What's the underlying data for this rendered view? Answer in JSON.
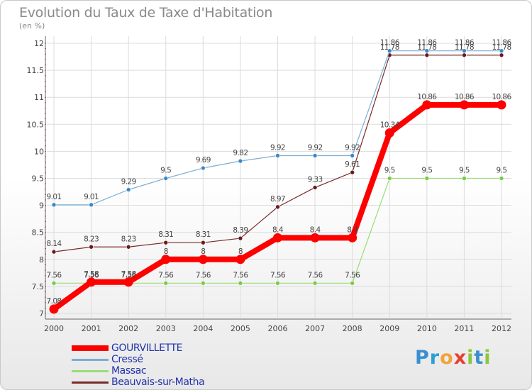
{
  "title": "Evolution du Taux de Taxe d'Habitation",
  "unit_label": "(en %)",
  "logo": {
    "text": "Proxiti",
    "letters": [
      {
        "ch": "P",
        "color": "#3a8fd0"
      },
      {
        "ch": "r",
        "color": "#2aa0d6"
      },
      {
        "ch": "o",
        "color": "#f2a33a"
      },
      {
        "ch": "x",
        "color": "#e84030"
      },
      {
        "ch": "i",
        "color": "#8cc63f"
      },
      {
        "ch": "t",
        "color": "#3a8fd0"
      },
      {
        "ch": "i",
        "color": "#8cc63f"
      }
    ]
  },
  "chart_data": {
    "type": "line",
    "x": [
      2000,
      2001,
      2002,
      2003,
      2004,
      2005,
      2006,
      2007,
      2008,
      2009,
      2010,
      2011,
      2012
    ],
    "y_ticks": [
      7,
      7.5,
      8,
      8.5,
      9,
      9.5,
      10,
      10.5,
      11,
      11.5,
      12
    ],
    "y_tick_labels": [
      "7",
      "7.5",
      "8",
      "8.5",
      "9",
      "9.5",
      "10",
      "10.5",
      "11",
      "11.5",
      "12"
    ],
    "ylim": [
      7,
      12
    ],
    "grid": true,
    "legend_position": "bottom-left",
    "series": [
      {
        "name": "Beauvais-sur-Matha",
        "color": "#7a2a2a",
        "marker": "#6b1a1a",
        "width": 1.2,
        "values": [
          8.14,
          8.23,
          8.23,
          8.31,
          8.31,
          8.39,
          8.97,
          9.33,
          9.61,
          11.78,
          11.78,
          11.78,
          11.78
        ],
        "labels": [
          "8.14",
          "8.23",
          "8.23",
          "8.31",
          "8.31",
          "8.39",
          "8.97",
          "9.33",
          "9.61",
          "11.78",
          "11.78",
          "11.78",
          "11.78"
        ]
      },
      {
        "name": "Massac",
        "color": "#99dd77",
        "marker": "#77cc44",
        "width": 1.2,
        "values": [
          7.56,
          7.56,
          7.56,
          7.56,
          7.56,
          7.56,
          7.56,
          7.56,
          7.56,
          9.5,
          9.5,
          9.5,
          9.5
        ],
        "labels": [
          "7.56",
          "7.56",
          "7.56",
          "7.56",
          "7.56",
          "7.56",
          "7.56",
          "7.56",
          "7.56",
          "9.5",
          "9.5",
          "9.5",
          "9.5"
        ]
      },
      {
        "name": "Cressé",
        "color": "#7aaed6",
        "marker": "#3a88c8",
        "width": 1.2,
        "values": [
          9.01,
          9.01,
          9.29,
          9.5,
          9.69,
          9.82,
          9.92,
          9.92,
          9.92,
          11.86,
          11.86,
          11.86,
          11.86
        ],
        "labels": [
          "9.01",
          "9.01",
          "9.29",
          "9.5",
          "9.69",
          "9.82",
          "9.92",
          "9.92",
          "9.92",
          "11.86",
          "11.86",
          "11.86",
          "11.86"
        ]
      },
      {
        "name": "GOURVILLETTE",
        "color": "#ff0000",
        "marker": "#ff0000",
        "width": 8,
        "values": [
          7.08,
          7.58,
          7.58,
          8,
          8,
          8,
          8.4,
          8.4,
          8.4,
          10.34,
          10.86,
          10.86,
          10.86
        ],
        "labels": [
          "7.08",
          "7.58",
          "7.58",
          "8",
          "8",
          "8",
          "8.4",
          "8.4",
          "8.4",
          "10.34",
          "10.86",
          "10.86",
          "10.86"
        ]
      }
    ],
    "legend": [
      {
        "name": "GOURVILLETTE",
        "color": "#ff0000",
        "weight": "thick"
      },
      {
        "name": "Cressé",
        "color": "#7aaed6",
        "weight": "thin"
      },
      {
        "name": "Massac",
        "color": "#99dd77",
        "weight": "thin"
      },
      {
        "name": "Beauvais-sur-Matha",
        "color": "#7a2a2a",
        "weight": "thin"
      }
    ]
  }
}
